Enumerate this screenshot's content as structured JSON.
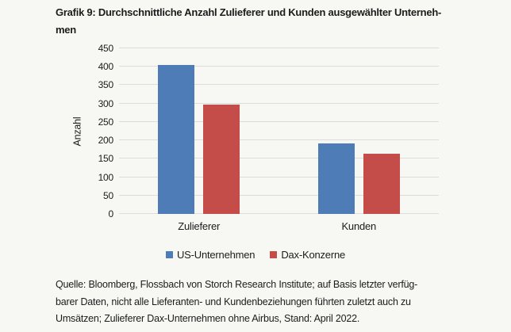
{
  "title": {
    "line1": "Grafik 9: Durchschnittliche Anzahl Zulieferer und Kunden ausgewählter Unterneh-",
    "line2": "men"
  },
  "chart_data": {
    "type": "bar",
    "categories": [
      "Zulieferer",
      "Kunden"
    ],
    "series": [
      {
        "name": "US-Unternehmen",
        "color": "#4d7cb7",
        "values": [
          405,
          192
        ]
      },
      {
        "name": "Dax-Konzerne",
        "color": "#c44c49",
        "values": [
          298,
          163
        ]
      }
    ],
    "title": "Grafik 9: Durchschnittliche Anzahl Zulieferer und Kunden ausgewählter Unternehmen",
    "xlabel": "",
    "ylabel": "Anzahl",
    "ylim": [
      0,
      450
    ],
    "ytick_step": 50,
    "grid": true,
    "legend_position": "bottom"
  },
  "source": {
    "line1": "Quelle: Bloomberg, Flossbach von Storch Research Institute; auf Basis letzter verfüg-",
    "line2": "barer Daten, nicht alle Lieferanten- und Kundenbeziehungen führten zuletzt auch zu",
    "line3": "Umsätzen; Zulieferer Dax-Unternehmen ohne Airbus, Stand: April 2022."
  },
  "colors": {
    "background": "#f7f7f4",
    "gridline": "#dcdcd8",
    "text": "#1c1c1c",
    "series_blue": "#4d7cb7",
    "series_red": "#c44c49"
  }
}
